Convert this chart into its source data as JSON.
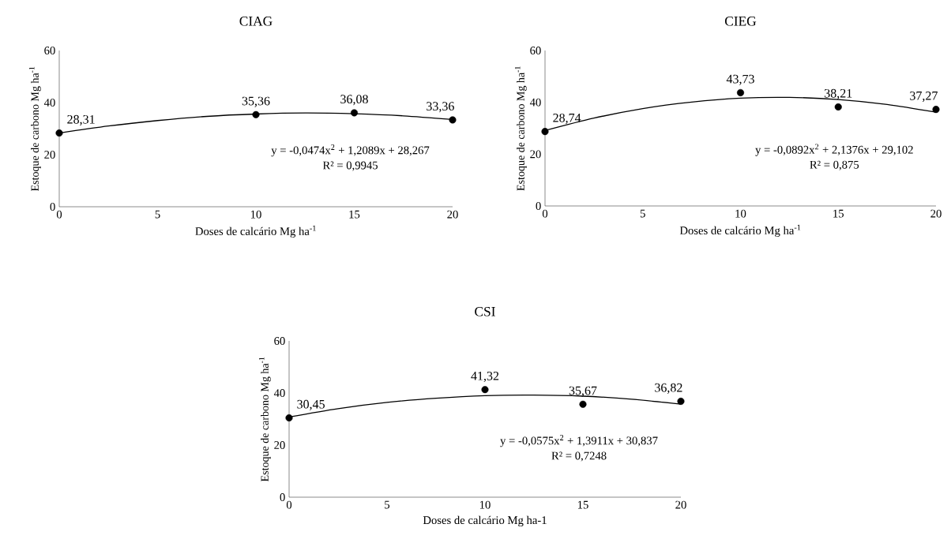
{
  "chart_data": [
    {
      "type": "scatter",
      "title": "CIAG",
      "xlabel": "Doses de calcário Mg ha$^{-1}$",
      "ylabel": "Estoque de carbono Mg ha$^{-1}$",
      "xlim": [
        0,
        20
      ],
      "xticks": [
        0,
        5,
        10,
        15,
        20
      ],
      "ylim": [
        0,
        60
      ],
      "yticks": [
        0,
        20,
        40,
        60
      ],
      "series": [
        {
          "type": "scatter",
          "color": "#000000",
          "marker": "circle",
          "x": [
            0,
            10,
            15,
            20
          ],
          "values": [
            28.31,
            35.36,
            36.08,
            33.36
          ],
          "value_labels": [
            "28,31",
            "35,36",
            "36,08",
            "33,36"
          ]
        },
        {
          "type": "line",
          "color": "#000000",
          "line_style": "solid",
          "x": [
            0,
            2.5,
            5,
            7.5,
            10,
            12.5,
            15,
            17.5,
            20
          ],
          "values": [
            28.3,
            31.0,
            33.1,
            34.7,
            35.6,
            36.0,
            35.7,
            34.9,
            33.5
          ]
        }
      ],
      "annotations": [
        "y = -0,0474x$^{2}$ + 1,2089x + 28,267",
        "R² = 0,9945"
      ]
    },
    {
      "type": "scatter",
      "title": "CIEG",
      "xlabel": "Doses de calcário Mg ha$^{-1}$",
      "ylabel": "Estoque de carbono Mg ha$^{-1}$",
      "xlim": [
        0,
        20
      ],
      "xticks": [
        0,
        5,
        10,
        15,
        20
      ],
      "ylim": [
        0,
        60
      ],
      "yticks": [
        0,
        20,
        40,
        60
      ],
      "series": [
        {
          "type": "scatter",
          "color": "#000000",
          "marker": "circle",
          "x": [
            0,
            10,
            15,
            20
          ],
          "values": [
            28.74,
            43.73,
            38.21,
            37.27
          ],
          "value_labels": [
            "28,74",
            "43,73",
            "38,21",
            "37,27"
          ]
        },
        {
          "type": "line",
          "color": "#000000",
          "line_style": "solid",
          "x": [
            0,
            2.5,
            5,
            7.5,
            10,
            12.5,
            15,
            17.5,
            20
          ],
          "values": [
            29.1,
            33.9,
            37.6,
            40.1,
            41.6,
            41.9,
            41.1,
            39.2,
            36.2
          ]
        }
      ],
      "annotations": [
        "y = -0,0892x$^{2}$ + 2,1376x + 29,102",
        "R² = 0,875"
      ]
    },
    {
      "type": "scatter",
      "title": "CSI",
      "xlabel": "Doses de calcário Mg ha-1",
      "ylabel": "Estoque de carbono Mg ha$^{-1}$",
      "xlim": [
        0,
        20
      ],
      "xticks": [
        0,
        5,
        10,
        15,
        20
      ],
      "ylim": [
        0,
        60
      ],
      "yticks": [
        0,
        20,
        40,
        60
      ],
      "series": [
        {
          "type": "scatter",
          "color": "#000000",
          "marker": "circle",
          "x": [
            0,
            10,
            15,
            20
          ],
          "values": [
            30.45,
            41.32,
            35.67,
            36.82
          ],
          "value_labels": [
            "30,45",
            "41,32",
            "35,67",
            "36,82"
          ]
        },
        {
          "type": "line",
          "color": "#000000",
          "line_style": "solid",
          "x": [
            0,
            2.5,
            5,
            7.5,
            10,
            12.5,
            15,
            17.5,
            20
          ],
          "values": [
            30.8,
            34.0,
            36.4,
            38.0,
            39.0,
            39.2,
            38.8,
            37.6,
            35.7
          ]
        }
      ],
      "annotations": [
        "y = -0,0575x$^{2}$ + 1,3911x + 30,837",
        "R² = 0,7248"
      ]
    }
  ]
}
